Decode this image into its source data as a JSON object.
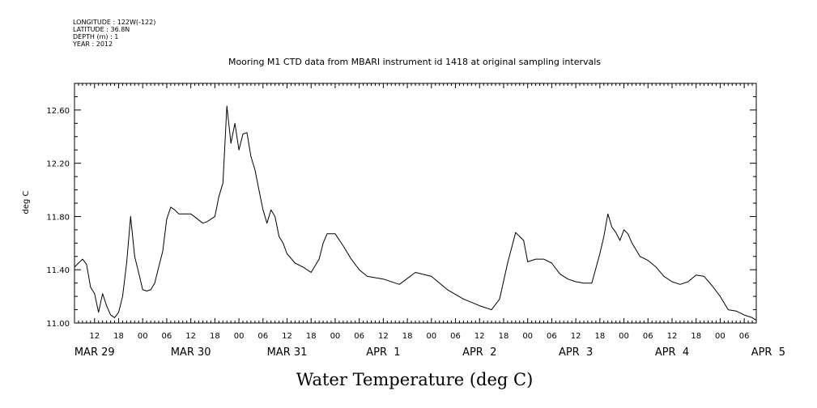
{
  "metadata_lines": [
    "LONGITUDE : 122W(-122)",
    "LATITUDE : 36.8N",
    "DEPTH (m) : 1",
    "YEAR : 2012"
  ],
  "chart_data": {
    "type": "line",
    "title": "Mooring M1 CTD data from MBARI instrument id 1418 at original sampling intervals",
    "xlabel": "Water Temperature (deg C)",
    "ylabel": "deg C",
    "ylim": [
      11.0,
      12.8
    ],
    "yticks": [
      "12.60",
      "12.20",
      "11.80",
      "11.40",
      "11.00"
    ],
    "xlim": [
      "2012-03-29 07:00",
      "2012-04-05 09:00"
    ],
    "hour_ticks": [
      {
        "t": "2012-03-29 12:00",
        "label": "12"
      },
      {
        "t": "2012-03-29 18:00",
        "label": "18"
      },
      {
        "t": "2012-03-30 00:00",
        "label": "00"
      },
      {
        "t": "2012-03-30 06:00",
        "label": "06"
      },
      {
        "t": "2012-03-30 12:00",
        "label": "12"
      },
      {
        "t": "2012-03-30 18:00",
        "label": "18"
      },
      {
        "t": "2012-03-31 00:00",
        "label": "00"
      },
      {
        "t": "2012-03-31 06:00",
        "label": "06"
      },
      {
        "t": "2012-03-31 12:00",
        "label": "12"
      },
      {
        "t": "2012-03-31 18:00",
        "label": "18"
      },
      {
        "t": "2012-04-01 00:00",
        "label": "00"
      },
      {
        "t": "2012-04-01 06:00",
        "label": "06"
      },
      {
        "t": "2012-04-01 12:00",
        "label": "12"
      },
      {
        "t": "2012-04-01 18:00",
        "label": "18"
      },
      {
        "t": "2012-04-02 00:00",
        "label": "00"
      },
      {
        "t": "2012-04-02 06:00",
        "label": "06"
      },
      {
        "t": "2012-04-02 12:00",
        "label": "12"
      },
      {
        "t": "2012-04-02 18:00",
        "label": "18"
      },
      {
        "t": "2012-04-03 00:00",
        "label": "00"
      },
      {
        "t": "2012-04-03 06:00",
        "label": "06"
      },
      {
        "t": "2012-04-03 12:00",
        "label": "12"
      },
      {
        "t": "2012-04-03 18:00",
        "label": "18"
      },
      {
        "t": "2012-04-04 00:00",
        "label": "00"
      },
      {
        "t": "2012-04-04 06:00",
        "label": "06"
      },
      {
        "t": "2012-04-04 12:00",
        "label": "12"
      },
      {
        "t": "2012-04-04 18:00",
        "label": "18"
      },
      {
        "t": "2012-04-05 00:00",
        "label": "00"
      },
      {
        "t": "2012-04-05 06:00",
        "label": "06"
      }
    ],
    "day_labels": [
      {
        "t": "2012-03-29 12:00",
        "label": "MAR 29"
      },
      {
        "t": "2012-03-30 12:00",
        "label": "MAR 30"
      },
      {
        "t": "2012-03-31 12:00",
        "label": "MAR 31"
      },
      {
        "t": "2012-04-01 12:00",
        "label": "APR  1"
      },
      {
        "t": "2012-04-02 12:00",
        "label": "APR  2"
      },
      {
        "t": "2012-04-03 12:00",
        "label": "APR  3"
      },
      {
        "t": "2012-04-04 12:00",
        "label": "APR  4"
      },
      {
        "t": "2012-04-05 12:00",
        "label": "APR  5"
      }
    ],
    "grid": false,
    "line_color": "#000000",
    "series": [
      {
        "x": [
          "2012-03-29 07:00",
          "2012-03-29 08:00",
          "2012-03-29 09:00",
          "2012-03-29 10:00",
          "2012-03-29 11:00",
          "2012-03-29 12:00",
          "2012-03-29 13:00",
          "2012-03-29 14:00",
          "2012-03-29 15:00",
          "2012-03-29 16:00",
          "2012-03-29 17:00",
          "2012-03-29 18:00",
          "2012-03-29 19:00",
          "2012-03-29 20:00",
          "2012-03-29 21:00",
          "2012-03-29 22:00",
          "2012-03-29 23:00",
          "2012-03-30 00:00",
          "2012-03-30 01:00",
          "2012-03-30 02:00",
          "2012-03-30 03:00",
          "2012-03-30 04:00",
          "2012-03-30 05:00",
          "2012-03-30 06:00",
          "2012-03-30 07:00",
          "2012-03-30 08:00",
          "2012-03-30 09:00",
          "2012-03-30 12:00",
          "2012-03-30 15:00",
          "2012-03-30 16:00",
          "2012-03-30 18:00",
          "2012-03-30 19:00",
          "2012-03-30 20:00",
          "2012-03-30 21:00",
          "2012-03-30 22:00",
          "2012-03-30 23:00",
          "2012-03-31 00:00",
          "2012-03-31 01:00",
          "2012-03-31 02:00",
          "2012-03-31 03:00",
          "2012-03-31 04:00",
          "2012-03-31 05:00",
          "2012-03-31 06:00",
          "2012-03-31 07:00",
          "2012-03-31 08:00",
          "2012-03-31 09:00",
          "2012-03-31 10:00",
          "2012-03-31 11:00",
          "2012-03-31 12:00",
          "2012-03-31 14:00",
          "2012-03-31 16:00",
          "2012-03-31 18:00",
          "2012-03-31 20:00",
          "2012-03-31 21:00",
          "2012-03-31 22:00",
          "2012-04-01 00:00",
          "2012-04-01 02:00",
          "2012-04-01 04:00",
          "2012-04-01 06:00",
          "2012-04-01 08:00",
          "2012-04-01 12:00",
          "2012-04-01 16:00",
          "2012-04-01 20:00",
          "2012-04-02 00:00",
          "2012-04-02 04:00",
          "2012-04-02 08:00",
          "2012-04-02 12:00",
          "2012-04-02 15:00",
          "2012-04-02 17:00",
          "2012-04-02 19:00",
          "2012-04-02 21:00",
          "2012-04-02 22:00",
          "2012-04-02 23:00",
          "2012-04-03 00:00",
          "2012-04-03 02:00",
          "2012-04-03 04:00",
          "2012-04-03 06:00",
          "2012-04-03 08:00",
          "2012-04-03 10:00",
          "2012-04-03 12:00",
          "2012-04-03 14:00",
          "2012-04-03 16:00",
          "2012-04-03 18:00",
          "2012-04-03 19:00",
          "2012-04-03 20:00",
          "2012-04-03 21:00",
          "2012-04-03 22:00",
          "2012-04-03 23:00",
          "2012-04-04 00:00",
          "2012-04-04 01:00",
          "2012-04-04 02:00",
          "2012-04-04 04:00",
          "2012-04-04 06:00",
          "2012-04-04 08:00",
          "2012-04-04 10:00",
          "2012-04-04 12:00",
          "2012-04-04 14:00",
          "2012-04-04 16:00",
          "2012-04-04 18:00",
          "2012-04-04 20:00",
          "2012-04-04 22:00",
          "2012-04-05 00:00",
          "2012-04-05 02:00",
          "2012-04-05 04:00",
          "2012-04-05 06:00",
          "2012-04-05 08:00",
          "2012-04-05 09:00"
        ],
        "values": [
          11.42,
          11.45,
          11.48,
          11.44,
          11.27,
          11.22,
          11.08,
          11.22,
          11.13,
          11.06,
          11.04,
          11.08,
          11.2,
          11.45,
          11.8,
          11.5,
          11.38,
          11.25,
          11.24,
          11.25,
          11.3,
          11.42,
          11.54,
          11.78,
          11.87,
          11.85,
          11.82,
          11.82,
          11.75,
          11.76,
          11.8,
          11.95,
          12.05,
          12.63,
          12.35,
          12.5,
          12.3,
          12.42,
          12.43,
          12.25,
          12.15,
          12.0,
          11.85,
          11.75,
          11.85,
          11.8,
          11.65,
          11.6,
          11.52,
          11.45,
          11.42,
          11.38,
          11.48,
          11.6,
          11.67,
          11.67,
          11.58,
          11.48,
          11.4,
          11.35,
          11.33,
          11.29,
          11.38,
          11.35,
          11.25,
          11.18,
          11.13,
          11.1,
          11.18,
          11.45,
          11.68,
          11.65,
          11.62,
          11.46,
          11.48,
          11.48,
          11.45,
          11.37,
          11.33,
          11.31,
          11.3,
          11.3,
          11.52,
          11.65,
          11.82,
          11.72,
          11.68,
          11.62,
          11.7,
          11.67,
          11.6,
          11.5,
          11.47,
          11.42,
          11.35,
          11.31,
          11.29,
          11.31,
          11.36,
          11.35,
          11.28,
          11.2,
          11.1,
          11.09,
          11.06,
          11.04,
          11.02
        ]
      }
    ]
  }
}
